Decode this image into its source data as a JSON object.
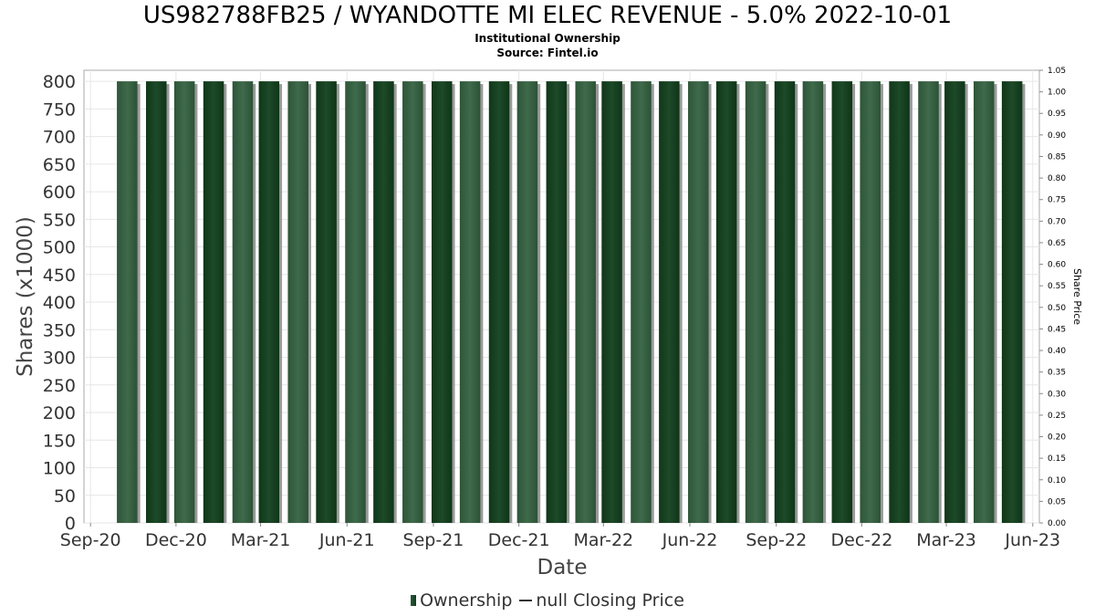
{
  "header": {
    "title": "US982788FB25 / WYANDOTTE MI ELEC REVENUE - 5.0% 2022-10-01",
    "subtitle1": "Institutional Ownership",
    "subtitle2": "Source: Fintel.io"
  },
  "legend": {
    "ownership": "Ownership",
    "closing": "null Closing Price"
  },
  "colors": {
    "bar_light": "#3a5f44",
    "bar_dark": "#153f20",
    "bar_shadow": "#9a9a9a",
    "grid": "#e6e6e6"
  },
  "chart_data": {
    "type": "bar",
    "xlabel": "Date",
    "ylabel": "Shares (x1000)",
    "y2label": "Share Price",
    "ylim": [
      0,
      820
    ],
    "y2lim": [
      0,
      1.05
    ],
    "grid": true,
    "legend_position": "bottom",
    "yticks": [
      "0",
      "50",
      "100",
      "150",
      "200",
      "250",
      "300",
      "350",
      "400",
      "450",
      "500",
      "550",
      "600",
      "650",
      "700",
      "750",
      "800"
    ],
    "y2ticks": [
      "0.00",
      "0.05",
      "0.10",
      "0.15",
      "0.20",
      "0.25",
      "0.30",
      "0.35",
      "0.40",
      "0.45",
      "0.50",
      "0.55",
      "0.60",
      "0.65",
      "0.70",
      "0.75",
      "0.80",
      "0.85",
      "0.90",
      "0.95",
      "1.00",
      "1.05"
    ],
    "xticks": [
      "Sep-20",
      "Dec-20",
      "Mar-21",
      "Jun-21",
      "Sep-21",
      "Dec-21",
      "Mar-22",
      "Jun-22",
      "Sep-22",
      "Dec-22",
      "Mar-23",
      "Jun-23"
    ],
    "x_range": [
      "2020-08-25",
      "2023-06-08"
    ],
    "series": [
      {
        "name": "Ownership",
        "dates": [
          "2020-10-10",
          "2020-11-10",
          "2020-12-10",
          "2021-01-10",
          "2021-02-10",
          "2021-03-10",
          "2021-04-10",
          "2021-05-10",
          "2021-06-10",
          "2021-07-10",
          "2021-08-10",
          "2021-09-10",
          "2021-10-10",
          "2021-11-10",
          "2021-12-10",
          "2022-01-10",
          "2022-02-10",
          "2022-03-10",
          "2022-04-10",
          "2022-05-10",
          "2022-06-10",
          "2022-07-10",
          "2022-08-10",
          "2022-09-10",
          "2022-10-10",
          "2022-11-10",
          "2022-12-10",
          "2023-01-10",
          "2023-02-10",
          "2023-03-10",
          "2023-04-10",
          "2023-05-10"
        ],
        "values": [
          800,
          800,
          800,
          800,
          800,
          800,
          800,
          800,
          800,
          800,
          800,
          800,
          800,
          800,
          800,
          800,
          800,
          800,
          800,
          800,
          800,
          800,
          800,
          800,
          800,
          800,
          800,
          800,
          800,
          800,
          800,
          800
        ]
      }
    ]
  }
}
